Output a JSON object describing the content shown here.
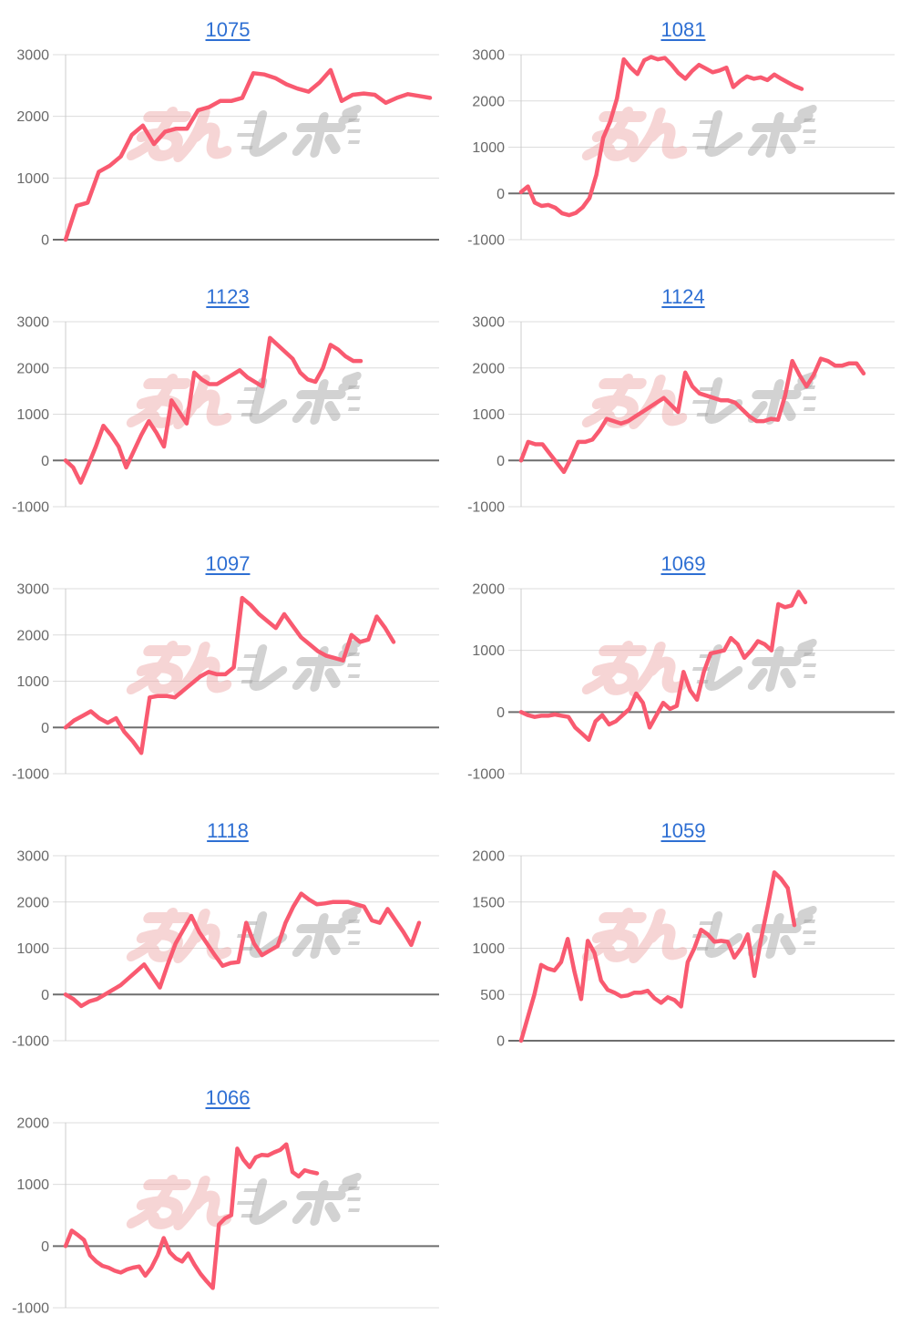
{
  "watermark": {
    "text_pink": "みん",
    "text_gray": "レポ"
  },
  "styles": {
    "line_color": "#f95a70",
    "title_color": "#2e6fd3",
    "tick_color": "#696969",
    "grid_color": "#dcdcdc",
    "zero_line_color": "#6e6e6e",
    "axis_color": "#cccccc",
    "wm_pink": "#eda3a3",
    "wm_gray": "#a6a6a6"
  },
  "chart_data": [
    {
      "type": "line",
      "title": "1075",
      "ylim": [
        0,
        3000
      ],
      "yticks": [
        0,
        1000,
        2000,
        3000
      ],
      "x_extent": 1.0,
      "grid": true,
      "legend": "none",
      "values": [
        0,
        550,
        600,
        1100,
        1200,
        1350,
        1700,
        1850,
        1550,
        1750,
        1800,
        1800,
        2100,
        2150,
        2250,
        2250,
        2300,
        2700,
        2680,
        2620,
        2520,
        2450,
        2400,
        2550,
        2750,
        2250,
        2350,
        2370,
        2350,
        2220,
        2300,
        2360,
        2330,
        2300
      ]
    },
    {
      "type": "line",
      "title": "1081",
      "ylim": [
        -1000,
        3000
      ],
      "yticks": [
        -1000,
        0,
        1000,
        2000,
        3000
      ],
      "x_extent": 0.77,
      "grid": true,
      "legend": "none",
      "values": [
        30,
        150,
        -200,
        -270,
        -250,
        -310,
        -430,
        -470,
        -420,
        -300,
        -100,
        400,
        1200,
        1550,
        2050,
        2900,
        2720,
        2580,
        2880,
        2950,
        2900,
        2930,
        2780,
        2600,
        2480,
        2650,
        2780,
        2700,
        2620,
        2660,
        2720,
        2300,
        2430,
        2530,
        2480,
        2510,
        2450,
        2570,
        2480,
        2400,
        2320,
        2260
      ]
    },
    {
      "type": "line",
      "title": "1123",
      "ylim": [
        -1000,
        3000
      ],
      "yticks": [
        -1000,
        0,
        1000,
        2000,
        3000
      ],
      "x_extent": 0.81,
      "grid": true,
      "legend": "none",
      "values": [
        0,
        -150,
        -480,
        -100,
        300,
        750,
        550,
        300,
        -150,
        200,
        550,
        850,
        600,
        300,
        1300,
        1050,
        800,
        1900,
        1750,
        1650,
        1650,
        1750,
        1850,
        1950,
        1800,
        1700,
        1600,
        2650,
        2500,
        2350,
        2200,
        1900,
        1750,
        1700,
        2000,
        2500,
        2400,
        2250,
        2150,
        2150
      ]
    },
    {
      "type": "line",
      "title": "1124",
      "ylim": [
        -1000,
        3000
      ],
      "yticks": [
        -1000,
        0,
        1000,
        2000,
        3000
      ],
      "x_extent": 0.94,
      "grid": true,
      "legend": "none",
      "values": [
        0,
        400,
        350,
        350,
        150,
        -50,
        -250,
        50,
        400,
        400,
        450,
        650,
        900,
        850,
        800,
        850,
        950,
        1050,
        1150,
        1250,
        1350,
        1200,
        1050,
        1900,
        1600,
        1450,
        1400,
        1350,
        1300,
        1300,
        1250,
        1100,
        950,
        850,
        850,
        900,
        880,
        1400,
        2150,
        1850,
        1600,
        1850,
        2200,
        2150,
        2050,
        2050,
        2100,
        2100,
        1880
      ]
    },
    {
      "type": "line",
      "title": "1097",
      "ylim": [
        -1000,
        3000
      ],
      "yticks": [
        -1000,
        0,
        1000,
        2000,
        3000
      ],
      "x_extent": 0.9,
      "grid": true,
      "legend": "none",
      "values": [
        0,
        150,
        250,
        350,
        200,
        100,
        200,
        -100,
        -300,
        -550,
        650,
        680,
        680,
        650,
        800,
        950,
        1100,
        1200,
        1150,
        1150,
        1300,
        2800,
        2650,
        2450,
        2300,
        2150,
        2450,
        2200,
        1950,
        1800,
        1650,
        1550,
        1500,
        1450,
        2000,
        1850,
        1900,
        2400,
        2150,
        1850
      ]
    },
    {
      "type": "line",
      "title": "1069",
      "ylim": [
        -1000,
        2000
      ],
      "yticks": [
        -1000,
        0,
        1000,
        2000
      ],
      "x_extent": 0.78,
      "grid": true,
      "legend": "none",
      "values": [
        0,
        -50,
        -80,
        -60,
        -60,
        -40,
        -60,
        -80,
        -250,
        -350,
        -450,
        -150,
        -50,
        -200,
        -150,
        -50,
        50,
        300,
        150,
        -250,
        -50,
        150,
        50,
        100,
        650,
        350,
        200,
        650,
        950,
        975,
        1000,
        1200,
        1100,
        880,
        1000,
        1150,
        1100,
        1000,
        1750,
        1700,
        1730,
        1950,
        1780
      ]
    },
    {
      "type": "line",
      "title": "1118",
      "ylim": [
        -1000,
        3000
      ],
      "yticks": [
        -1000,
        0,
        1000,
        2000,
        3000
      ],
      "x_extent": 0.97,
      "grid": true,
      "legend": "none",
      "values": [
        0,
        -100,
        -250,
        -150,
        -100,
        0,
        100,
        200,
        350,
        500,
        650,
        400,
        150,
        650,
        1100,
        1400,
        1700,
        1350,
        1100,
        850,
        620,
        680,
        700,
        1550,
        1100,
        850,
        950,
        1050,
        1550,
        1900,
        2180,
        2050,
        1950,
        1970,
        2000,
        2000,
        2000,
        1950,
        1900,
        1600,
        1550,
        1850,
        1600,
        1350,
        1070,
        1550
      ]
    },
    {
      "type": "line",
      "title": "1059",
      "ylim": [
        0,
        2000
      ],
      "yticks": [
        0,
        500,
        1000,
        1500,
        2000
      ],
      "x_extent": 0.75,
      "grid": true,
      "legend": "none",
      "values": [
        0,
        250,
        500,
        820,
        780,
        760,
        850,
        1100,
        750,
        450,
        1080,
        950,
        650,
        550,
        520,
        480,
        490,
        520,
        520,
        540,
        460,
        410,
        470,
        440,
        370,
        850,
        1000,
        1200,
        1150,
        1070,
        1080,
        1070,
        900,
        1000,
        1150,
        700,
        1100,
        1450,
        1820,
        1750,
        1650,
        1250
      ]
    },
    {
      "type": "line",
      "title": "1066",
      "ylim": [
        -1000,
        2000
      ],
      "yticks": [
        -1000,
        0,
        1000,
        2000
      ],
      "x_extent": 0.69,
      "grid": true,
      "legend": "none",
      "values": [
        0,
        250,
        180,
        100,
        -150,
        -250,
        -320,
        -350,
        -400,
        -430,
        -380,
        -350,
        -330,
        -480,
        -350,
        -150,
        130,
        -100,
        -200,
        -250,
        -120,
        -300,
        -450,
        -570,
        -680,
        350,
        450,
        500,
        1580,
        1400,
        1280,
        1440,
        1480,
        1470,
        1520,
        1560,
        1650,
        1200,
        1130,
        1230,
        1200,
        1180
      ]
    }
  ]
}
